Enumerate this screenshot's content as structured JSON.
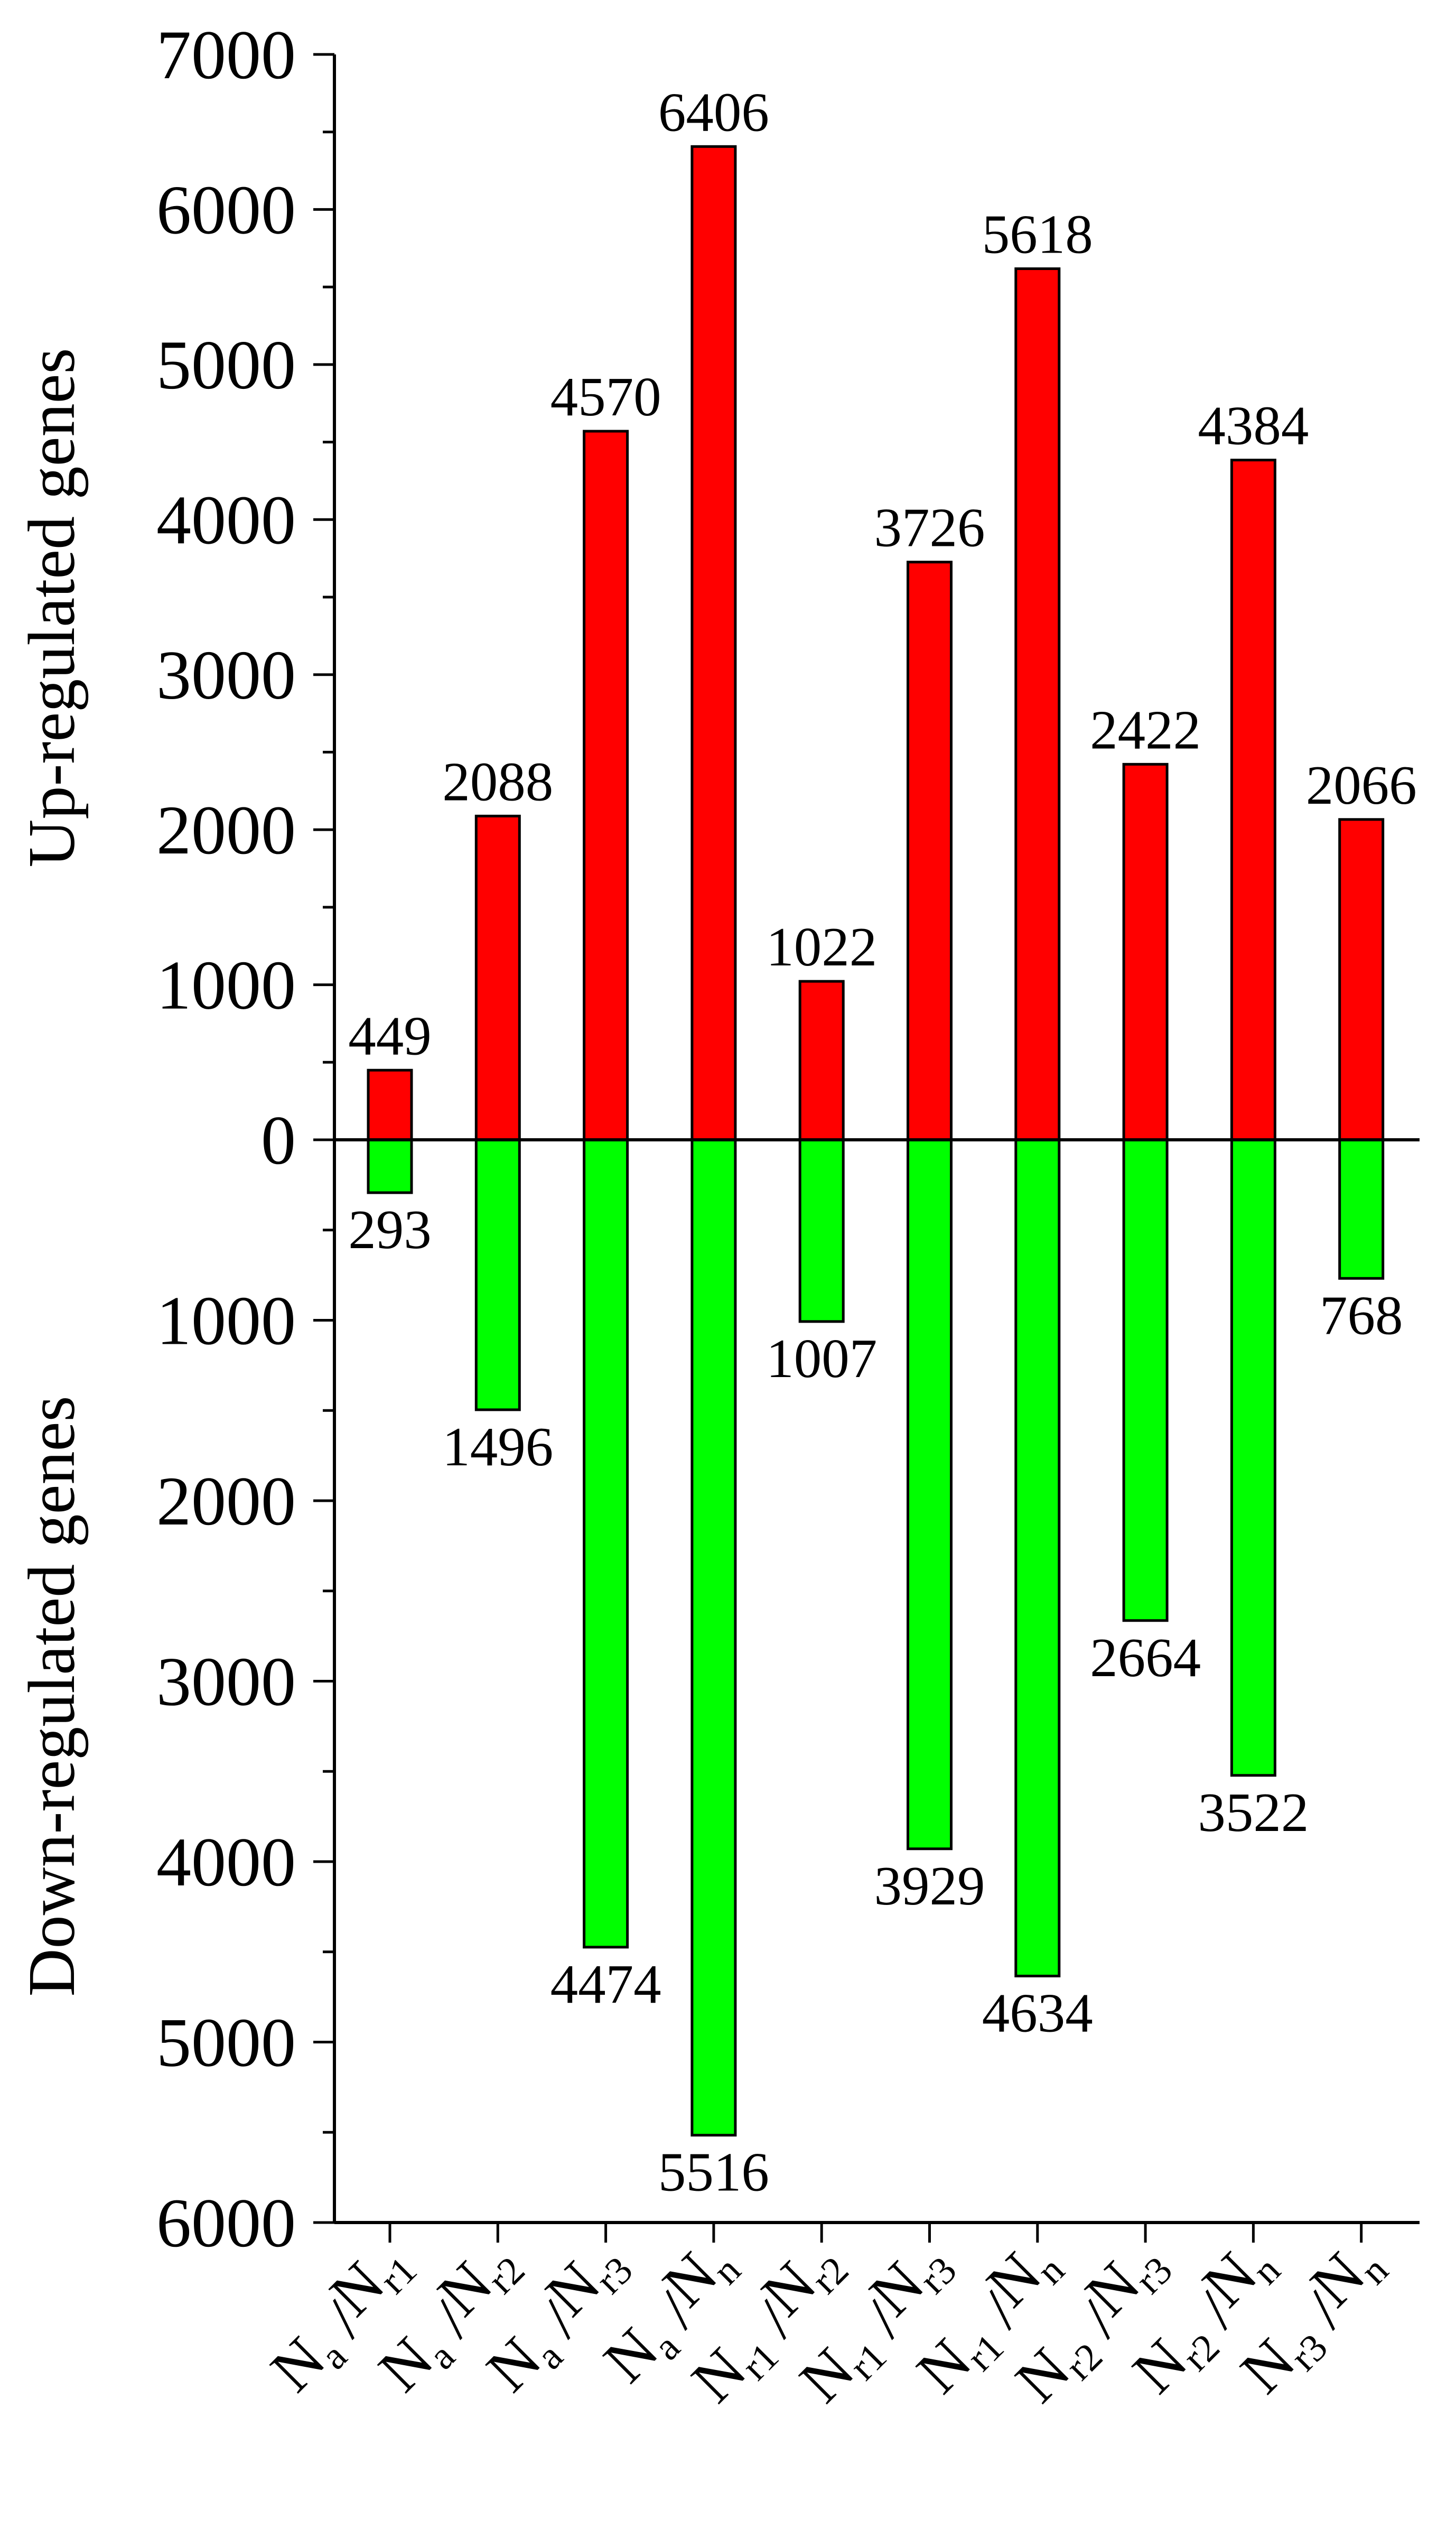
{
  "chart_data": {
    "type": "bar",
    "categories": [
      {
        "main1": "N",
        "sub1": "a",
        "main2": "N",
        "sub2": "r1"
      },
      {
        "main1": "N",
        "sub1": "a",
        "main2": "N",
        "sub2": "r2"
      },
      {
        "main1": "N",
        "sub1": "a",
        "main2": "N",
        "sub2": "r3"
      },
      {
        "main1": "N",
        "sub1": "a",
        "main2": "N",
        "sub2": "n"
      },
      {
        "main1": "N",
        "sub1": "r1",
        "main2": "N",
        "sub2": "r2"
      },
      {
        "main1": "N",
        "sub1": "r1",
        "main2": "N",
        "sub2": "r3"
      },
      {
        "main1": "N",
        "sub1": "r1",
        "main2": "N",
        "sub2": "n"
      },
      {
        "main1": "N",
        "sub1": "r2",
        "main2": "N",
        "sub2": "r3"
      },
      {
        "main1": "N",
        "sub1": "r2",
        "main2": "N",
        "sub2": "n"
      },
      {
        "main1": "N",
        "sub1": "r3",
        "main2": "N",
        "sub2": "n"
      }
    ],
    "series": [
      {
        "values": [
          449,
          2088,
          4570,
          6406,
          1022,
          3726,
          5618,
          2422,
          4384,
          2066
        ],
        "color": "#ff0000"
      },
      {
        "values": [
          293,
          1496,
          4474,
          5516,
          1007,
          3929,
          4634,
          2664,
          3522,
          768
        ],
        "color": "#00ff00"
      }
    ],
    "up_axis": {
      "label": "Up-regulated genes",
      "range": [
        0,
        7000
      ],
      "ticks": [
        "0",
        "1000",
        "2000",
        "3000",
        "4000",
        "5000",
        "6000",
        "7000"
      ]
    },
    "down_axis": {
      "label": "Down-regulated genes",
      "range": [
        0,
        6000
      ],
      "ticks": [
        "1000",
        "2000",
        "3000",
        "4000",
        "5000",
        "6000"
      ]
    },
    "legend": "none",
    "grid": false
  }
}
